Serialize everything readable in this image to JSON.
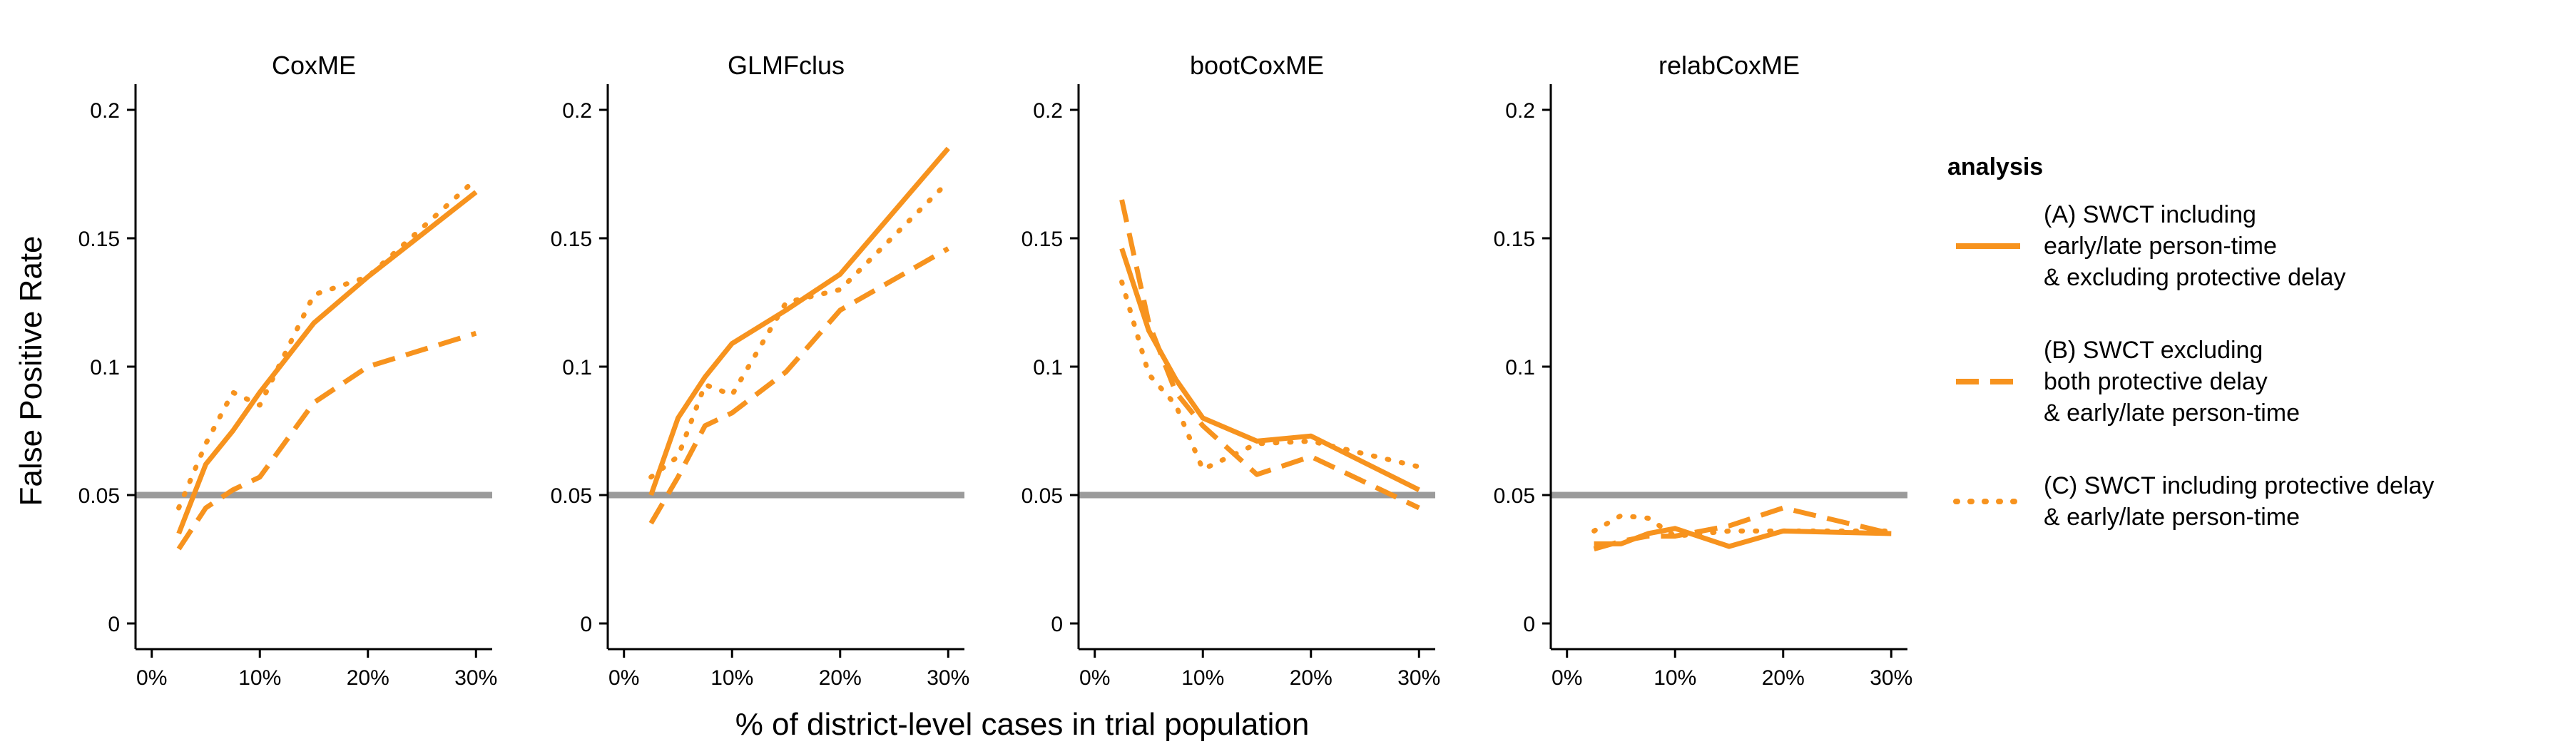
{
  "figure": {
    "ylabel": "False Positive Rate",
    "xlabel": "% of district-level cases in trial population"
  },
  "legend": {
    "title": "analysis",
    "items": [
      {
        "lines": [
          "(A) SWCT including",
          "early/late person-time",
          "& excluding protective delay"
        ],
        "style": "solid"
      },
      {
        "lines": [
          "(B) SWCT excluding",
          "both protective delay",
          "& early/late person-time"
        ],
        "style": "dashed"
      },
      {
        "lines": [
          "(C) SWCT including protective delay",
          "& early/late person-time"
        ],
        "style": "dotted"
      }
    ]
  },
  "colors": {
    "series": "#F7931E",
    "reference": "#9B9B9B",
    "axis": "#000000"
  },
  "chart_data": {
    "type": "line",
    "panels": [
      "CoxME",
      "GLMFclus",
      "bootCoxME",
      "relabCoxME"
    ],
    "x_ticks": [
      0,
      10,
      20,
      30
    ],
    "x_tick_labels": [
      "0%",
      "10%",
      "20%",
      "30%"
    ],
    "y_ticks": [
      0,
      0.05,
      0.1,
      0.15,
      0.2
    ],
    "y_tick_labels": [
      "0",
      "0.05",
      "0.1",
      "0.15",
      "0.2"
    ],
    "xlim": [
      -1.5,
      31.5
    ],
    "ylim": [
      -0.01,
      0.21
    ],
    "reference_line": 0.05,
    "x": [
      2.5,
      5,
      7.5,
      10,
      15,
      20,
      30
    ],
    "series": {
      "CoxME": [
        {
          "style": "solid",
          "values": [
            0.035,
            0.062,
            0.075,
            0.09,
            0.117,
            0.135,
            0.168
          ]
        },
        {
          "style": "dashed",
          "values": [
            0.029,
            0.045,
            0.052,
            0.057,
            0.086,
            0.1,
            0.113
          ]
        },
        {
          "style": "dotted",
          "values": [
            0.045,
            0.07,
            0.09,
            0.085,
            0.128,
            0.135,
            0.173
          ]
        }
      ],
      "GLMFclus": [
        {
          "style": "solid",
          "values": [
            0.05,
            0.08,
            0.096,
            0.109,
            0.122,
            0.136,
            0.185
          ]
        },
        {
          "style": "dashed",
          "values": [
            0.039,
            0.057,
            0.077,
            0.082,
            0.098,
            0.122,
            0.146
          ]
        },
        {
          "style": "dotted",
          "values": [
            0.057,
            0.065,
            0.093,
            0.089,
            0.125,
            0.13,
            0.172
          ]
        }
      ],
      "bootCoxME": [
        {
          "style": "solid",
          "values": [
            0.146,
            0.114,
            0.095,
            0.08,
            0.071,
            0.073,
            0.052
          ]
        },
        {
          "style": "dashed",
          "values": [
            0.165,
            0.117,
            0.09,
            0.077,
            0.058,
            0.065,
            0.045
          ]
        },
        {
          "style": "dotted",
          "values": [
            0.133,
            0.097,
            0.085,
            0.06,
            0.07,
            0.071,
            0.061
          ]
        }
      ],
      "relabCoxME": [
        {
          "style": "solid",
          "values": [
            0.031,
            0.031,
            0.035,
            0.037,
            0.03,
            0.036,
            0.035
          ]
        },
        {
          "style": "dashed",
          "values": [
            0.029,
            0.032,
            0.034,
            0.034,
            0.038,
            0.045,
            0.035
          ]
        },
        {
          "style": "dotted",
          "values": [
            0.036,
            0.042,
            0.041,
            0.034,
            0.036,
            0.036,
            0.036
          ]
        }
      ]
    }
  }
}
